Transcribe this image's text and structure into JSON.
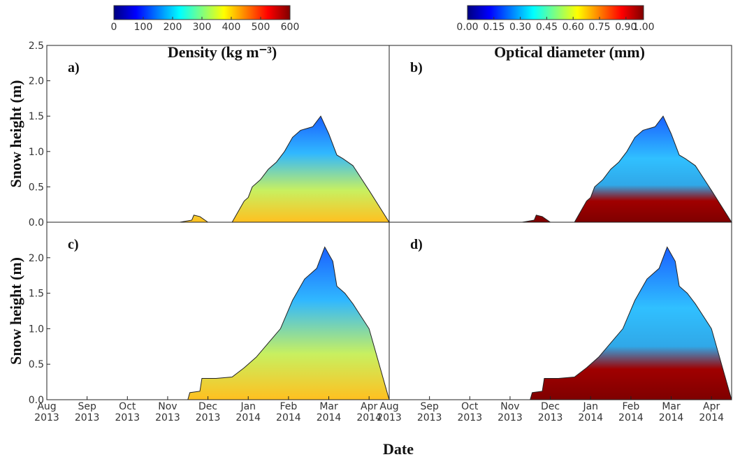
{
  "colorbars": [
    {
      "title": "Density (kg m⁻³)",
      "lim": [
        0,
        600
      ],
      "ticks": [
        0,
        100,
        200,
        300,
        400,
        500,
        600
      ],
      "colormap": [
        "#00007f",
        "#0000ff",
        "#007fff",
        "#00ffff",
        "#7fff7f",
        "#ffff00",
        "#ff7f00",
        "#ff0000",
        "#7f0000"
      ]
    },
    {
      "title": "Optical diameter (mm)",
      "lim": [
        0,
        1
      ],
      "ticks": [
        {
          "value": 0,
          "label": "0.00"
        },
        {
          "value": 0.15,
          "label": "0.15"
        },
        {
          "value": 0.3,
          "label": "0.30"
        },
        {
          "value": 0.45,
          "label": "0.45"
        },
        {
          "value": 0.6,
          "label": "0.60"
        },
        {
          "value": 0.75,
          "label": "0.75"
        },
        {
          "value": 0.9,
          "label": "0.90"
        },
        {
          "value": 1,
          "label": "1.00"
        }
      ],
      "colormap": [
        "#00007f",
        "#0000ff",
        "#007fff",
        "#00ffff",
        "#7fff7f",
        "#ffff00",
        "#ff7f00",
        "#ff0000",
        "#7f0000"
      ]
    }
  ],
  "xlabel": "Date",
  "chart_data": [
    {
      "type": "area",
      "label": "a)",
      "ylabel": "Snow height (m)",
      "xlim": [
        0,
        8.5
      ],
      "ylim": [
        0,
        2.5
      ],
      "yticks": [
        {
          "value": 0,
          "label": "0.0"
        },
        {
          "value": 0.5,
          "label": "0.5"
        },
        {
          "value": 1,
          "label": "1.0"
        },
        {
          "value": 1.5,
          "label": "1.5"
        },
        {
          "value": 2,
          "label": "2.0"
        },
        {
          "value": 2.5,
          "label": "2.5"
        }
      ],
      "x": [
        3.3,
        3.6,
        3.65,
        3.8,
        4.0,
        4.6,
        4.8,
        4.9,
        5.0,
        5.1,
        5.3,
        5.5,
        5.7,
        5.9,
        6.1,
        6.3,
        6.6,
        6.8,
        7.0,
        7.2,
        7.35,
        7.6,
        8.0,
        8.5
      ],
      "values": [
        0,
        0.03,
        0.1,
        0.08,
        0,
        0,
        0.2,
        0.3,
        0.35,
        0.5,
        0.6,
        0.75,
        0.85,
        1.0,
        1.2,
        1.3,
        1.35,
        1.5,
        1.25,
        0.95,
        0.9,
        0.8,
        0.45,
        0
      ]
    },
    {
      "type": "area",
      "label": "b)",
      "xlim": [
        0,
        8.5
      ],
      "ylim": [
        0,
        2.5
      ],
      "x": [
        3.3,
        3.6,
        3.65,
        3.8,
        4.0,
        4.6,
        4.8,
        4.9,
        5.0,
        5.1,
        5.3,
        5.5,
        5.7,
        5.9,
        6.1,
        6.3,
        6.6,
        6.8,
        7.0,
        7.2,
        7.35,
        7.6,
        8.0,
        8.5
      ],
      "values": [
        0,
        0.03,
        0.1,
        0.08,
        0,
        0,
        0.2,
        0.3,
        0.35,
        0.5,
        0.6,
        0.75,
        0.85,
        1.0,
        1.2,
        1.3,
        1.35,
        1.5,
        1.25,
        0.95,
        0.9,
        0.8,
        0.45,
        0
      ]
    },
    {
      "type": "area",
      "label": "c)",
      "ylabel": "Snow height (m)",
      "xlim": [
        0,
        8.5
      ],
      "ylim": [
        0,
        2.5
      ],
      "yticks": [
        {
          "value": 0,
          "label": "0.0"
        },
        {
          "value": 0.5,
          "label": "0.5"
        },
        {
          "value": 1,
          "label": "1.0"
        },
        {
          "value": 1.5,
          "label": "1.5"
        },
        {
          "value": 2,
          "label": "2.0"
        }
      ],
      "xticks": [
        {
          "value": 0,
          "label": "Aug 2013"
        },
        {
          "value": 1,
          "label": "Sep 2013"
        },
        {
          "value": 2,
          "label": "Oct 2013"
        },
        {
          "value": 3,
          "label": "Nov 2013"
        },
        {
          "value": 4,
          "label": "Dec 2013"
        },
        {
          "value": 5,
          "label": "Jan 2014"
        },
        {
          "value": 6,
          "label": "Feb 2014"
        },
        {
          "value": 7,
          "label": "Mar 2014"
        },
        {
          "value": 8,
          "label": "Apr 2014"
        }
      ],
      "x": [
        3.5,
        3.55,
        3.8,
        3.85,
        4.2,
        4.6,
        4.9,
        5.2,
        5.5,
        5.8,
        6.1,
        6.4,
        6.7,
        6.9,
        7.1,
        7.2,
        7.4,
        7.6,
        8.0,
        8.5
      ],
      "values": [
        0,
        0.1,
        0.12,
        0.3,
        0.3,
        0.32,
        0.45,
        0.6,
        0.8,
        1.0,
        1.4,
        1.7,
        1.85,
        2.15,
        1.95,
        1.6,
        1.5,
        1.35,
        1.0,
        0
      ]
    },
    {
      "type": "area",
      "label": "d)",
      "xlim": [
        0,
        8.5
      ],
      "ylim": [
        0,
        2.5
      ],
      "xticks": [
        {
          "value": 0,
          "label": "Aug 2013"
        },
        {
          "value": 1,
          "label": "Sep 2013"
        },
        {
          "value": 2,
          "label": "Oct 2013"
        },
        {
          "value": 3,
          "label": "Nov 2013"
        },
        {
          "value": 4,
          "label": "Dec 2013"
        },
        {
          "value": 5,
          "label": "Jan 2014"
        },
        {
          "value": 6,
          "label": "Feb 2014"
        },
        {
          "value": 7,
          "label": "Mar 2014"
        },
        {
          "value": 8,
          "label": "Apr 2014"
        }
      ],
      "x": [
        3.5,
        3.55,
        3.8,
        3.85,
        4.2,
        4.6,
        4.9,
        5.2,
        5.5,
        5.8,
        6.1,
        6.4,
        6.7,
        6.9,
        7.1,
        7.2,
        7.4,
        7.6,
        8.0,
        8.5
      ],
      "values": [
        0,
        0.1,
        0.12,
        0.3,
        0.3,
        0.32,
        0.45,
        0.6,
        0.8,
        1.0,
        1.4,
        1.7,
        1.85,
        2.15,
        1.95,
        1.6,
        1.5,
        1.35,
        1.0,
        0
      ]
    }
  ]
}
